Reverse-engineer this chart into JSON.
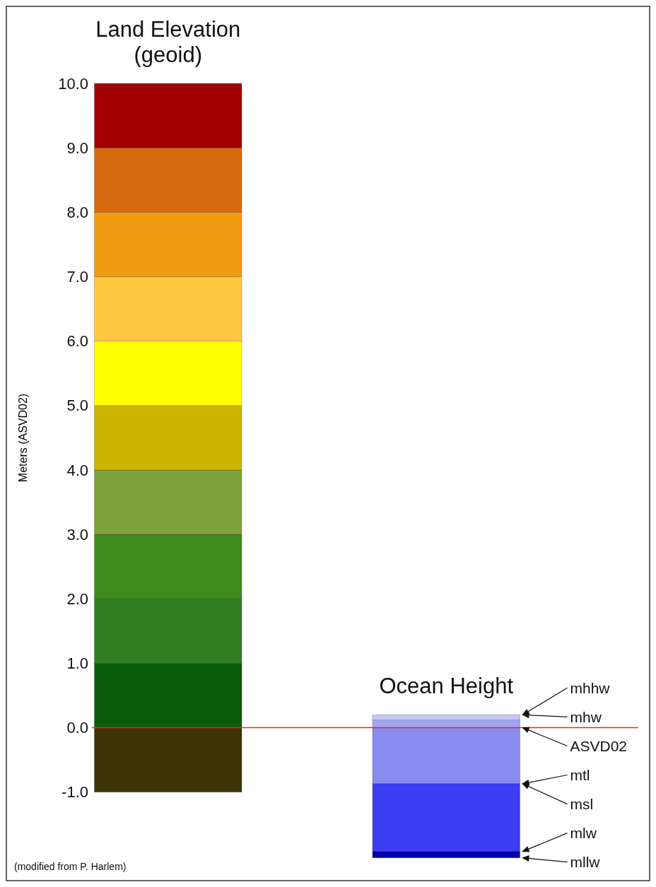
{
  "chart_data": {
    "type": "bar",
    "stacked": true,
    "categories": [
      "Land Elevation (geoid)",
      "Ocean Height"
    ],
    "ylabel": "Meters (ASVD02)",
    "ylim": [
      -2.1,
      10.0
    ],
    "yticks": [
      {
        "value": -1,
        "label": "-1.0"
      },
      {
        "value": 0,
        "label": "0.0"
      },
      {
        "value": 1,
        "label": "1.0"
      },
      {
        "value": 2,
        "label": "2.0"
      },
      {
        "value": 3,
        "label": "3.0"
      },
      {
        "value": 4,
        "label": "4.0"
      },
      {
        "value": 5,
        "label": "5.0"
      },
      {
        "value": 6,
        "label": "6.0"
      },
      {
        "value": 7,
        "label": "7.0"
      },
      {
        "value": 8,
        "label": "8.0"
      },
      {
        "value": 9,
        "label": "9.0"
      },
      {
        "value": 10,
        "label": "10.0"
      }
    ],
    "series": [
      {
        "values": [
          1,
          0.12
        ],
        "colors": [
          "#0a5c0a",
          "#a2a4f4"
        ]
      },
      {
        "values": [
          1,
          0.08
        ],
        "colors": [
          "#2f7f22",
          "#c6c8f7"
        ]
      },
      {
        "values": [
          1,
          null
        ],
        "colors": [
          "#3e8a1c",
          null
        ]
      },
      {
        "values": [
          1,
          null
        ],
        "colors": [
          "#80a13c",
          null
        ]
      },
      {
        "values": [
          1,
          null
        ],
        "colors": [
          "#cdb400",
          null
        ]
      },
      {
        "values": [
          1,
          null
        ],
        "colors": [
          "#ffff00",
          null
        ]
      },
      {
        "values": [
          1,
          null
        ],
        "colors": [
          "#ffc640",
          null
        ]
      },
      {
        "values": [
          1,
          null
        ],
        "colors": [
          "#f09c12",
          null
        ]
      },
      {
        "values": [
          1,
          null
        ],
        "colors": [
          "#d66a10",
          null
        ]
      },
      {
        "values": [
          1,
          null
        ],
        "colors": [
          "#a00000",
          null
        ]
      },
      {
        "values": [
          -1,
          -0.87
        ],
        "colors": [
          "#3d3508",
          "#8a8cf0"
        ]
      },
      {
        "values": [
          null,
          -1.05
        ],
        "colors": [
          null,
          "#3c3cf2"
        ]
      },
      {
        "values": [
          null,
          -0.1
        ],
        "colors": [
          null,
          "#0000a8"
        ]
      }
    ],
    "ref_lines": [
      {
        "axis": "y",
        "value": 0,
        "color": "#e03010"
      }
    ],
    "annotations": [
      "mhhw",
      "mhw",
      "ASVD02",
      "mtl",
      "msl",
      "mlw",
      "mllw",
      "(modified from P. Harlem)"
    ],
    "legend": false,
    "grid": false
  }
}
